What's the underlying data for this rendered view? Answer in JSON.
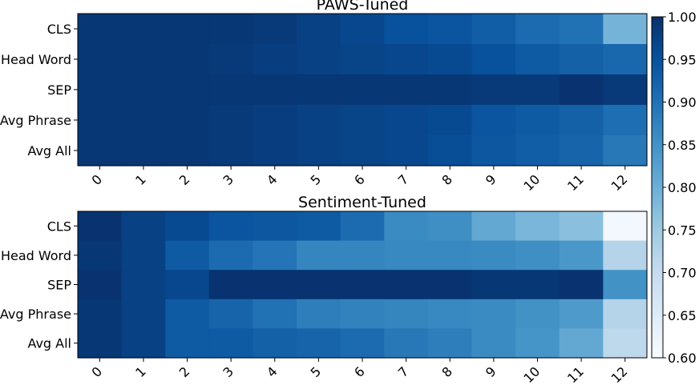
{
  "chart_data": [
    {
      "type": "heatmap",
      "title": "PAWS-Tuned",
      "x": [
        "0",
        "1",
        "2",
        "3",
        "4",
        "5",
        "6",
        "7",
        "8",
        "9",
        "10",
        "11",
        "12"
      ],
      "y": [
        "CLS",
        "Head Word",
        "SEP",
        "Avg Phrase",
        "Avg All"
      ],
      "values": [
        [
          0.99,
          0.99,
          0.99,
          0.99,
          0.985,
          0.975,
          0.965,
          0.95,
          0.945,
          0.93,
          0.91,
          0.9,
          0.79
        ],
        [
          0.99,
          0.99,
          0.99,
          0.985,
          0.98,
          0.975,
          0.97,
          0.965,
          0.96,
          0.95,
          0.935,
          0.925,
          0.915
        ],
        [
          0.99,
          0.99,
          0.99,
          0.99,
          0.99,
          0.99,
          0.99,
          0.99,
          0.99,
          0.985,
          0.985,
          0.995,
          0.985
        ],
        [
          0.99,
          0.99,
          0.99,
          0.985,
          0.98,
          0.975,
          0.97,
          0.965,
          0.96,
          0.945,
          0.935,
          0.925,
          0.905
        ],
        [
          0.99,
          0.99,
          0.99,
          0.985,
          0.98,
          0.975,
          0.97,
          0.965,
          0.955,
          0.94,
          0.93,
          0.92,
          0.89
        ]
      ]
    },
    {
      "type": "heatmap",
      "title": "Sentiment-Tuned",
      "x": [
        "0",
        "1",
        "2",
        "3",
        "4",
        "5",
        "6",
        "7",
        "8",
        "9",
        "10",
        "11",
        "12"
      ],
      "y": [
        "CLS",
        "Head Word",
        "SEP",
        "Avg Phrase",
        "Avg All"
      ],
      "values": [
        [
          0.995,
          0.975,
          0.96,
          0.945,
          0.94,
          0.935,
          0.91,
          0.86,
          0.855,
          0.81,
          0.785,
          0.77,
          0.61
        ],
        [
          0.99,
          0.975,
          0.935,
          0.91,
          0.895,
          0.87,
          0.87,
          0.865,
          0.865,
          0.86,
          0.855,
          0.84,
          0.72
        ],
        [
          0.995,
          0.975,
          0.965,
          0.995,
          0.995,
          0.995,
          0.995,
          0.995,
          0.995,
          0.99,
          0.99,
          0.995,
          0.85
        ],
        [
          0.99,
          0.975,
          0.935,
          0.92,
          0.9,
          0.88,
          0.875,
          0.87,
          0.865,
          0.86,
          0.85,
          0.835,
          0.72
        ],
        [
          0.99,
          0.975,
          0.935,
          0.935,
          0.925,
          0.92,
          0.91,
          0.89,
          0.88,
          0.86,
          0.845,
          0.81,
          0.71
        ]
      ]
    }
  ],
  "colorbar": {
    "min": 0.6,
    "max": 1.0,
    "ticks": [
      "1.00",
      "0.95",
      "0.90",
      "0.85",
      "0.80",
      "0.75",
      "0.70",
      "0.65",
      "0.60"
    ],
    "colormap": "Blues",
    "stops": [
      "#f7fbff",
      "#deebf7",
      "#c6dbef",
      "#9ecae1",
      "#6baed6",
      "#4292c6",
      "#2171b5",
      "#08519c",
      "#08306b"
    ]
  }
}
